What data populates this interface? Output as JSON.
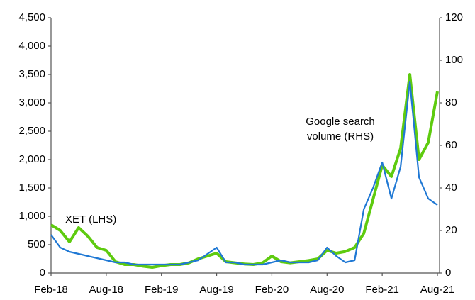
{
  "chart_data": {
    "type": "line",
    "categories": [
      "Feb-18",
      null,
      null,
      null,
      null,
      null,
      "Aug-18",
      null,
      null,
      null,
      null,
      null,
      "Feb-19",
      null,
      null,
      null,
      null,
      null,
      "Aug-19",
      null,
      null,
      null,
      null,
      null,
      "Feb-20",
      null,
      null,
      null,
      null,
      null,
      "Aug-20",
      null,
      null,
      null,
      null,
      null,
      "Feb-21",
      null,
      null,
      null,
      null,
      null,
      "Aug-21"
    ],
    "series": [
      {
        "name": "XET (LHS)",
        "color": "#5ecb0f",
        "values": [
          850,
          750,
          550,
          800,
          650,
          450,
          400,
          200,
          150,
          150,
          120,
          100,
          130,
          150,
          150,
          180,
          250,
          300,
          350,
          200,
          180,
          160,
          150,
          180,
          300,
          200,
          180,
          200,
          220,
          250,
          400,
          350,
          380,
          450,
          700,
          1300,
          1900,
          1700,
          2200,
          3500,
          2000,
          2300,
          3200
        ]
      },
      {
        "name": "Google search volume (RHS)",
        "color": "#1f78d4",
        "axis": "y2",
        "values": [
          18,
          12,
          10,
          9,
          8,
          7,
          6,
          5,
          5,
          4,
          4,
          4,
          4,
          4,
          4,
          5,
          6,
          9,
          12,
          5,
          5,
          4,
          4,
          4,
          5,
          6,
          5,
          5,
          5,
          6,
          12,
          8,
          5,
          6,
          30,
          40,
          52,
          35,
          50,
          90,
          45,
          35,
          32
        ]
      }
    ],
    "annotations": [
      "XET (LHS)",
      "Google search",
      "volume (RHS)"
    ],
    "ylim": [
      0,
      4500
    ],
    "yticks": [
      0,
      500,
      {
        "value": 1000,
        "label": "1,000"
      },
      {
        "value": 1500,
        "label": "1,500"
      },
      {
        "value": 2000,
        "label": "2,000"
      },
      {
        "value": 2500,
        "label": "2,500"
      },
      {
        "value": 3000,
        "label": "3,000"
      },
      {
        "value": 3500,
        "label": "3,500"
      },
      {
        "value": 4000,
        "label": "4,000"
      },
      {
        "value": 4500,
        "label": "4,500"
      }
    ],
    "y2lim": [
      0,
      120
    ],
    "y2ticks": [
      0,
      20,
      40,
      60,
      80,
      100,
      120
    ],
    "grid": false
  }
}
